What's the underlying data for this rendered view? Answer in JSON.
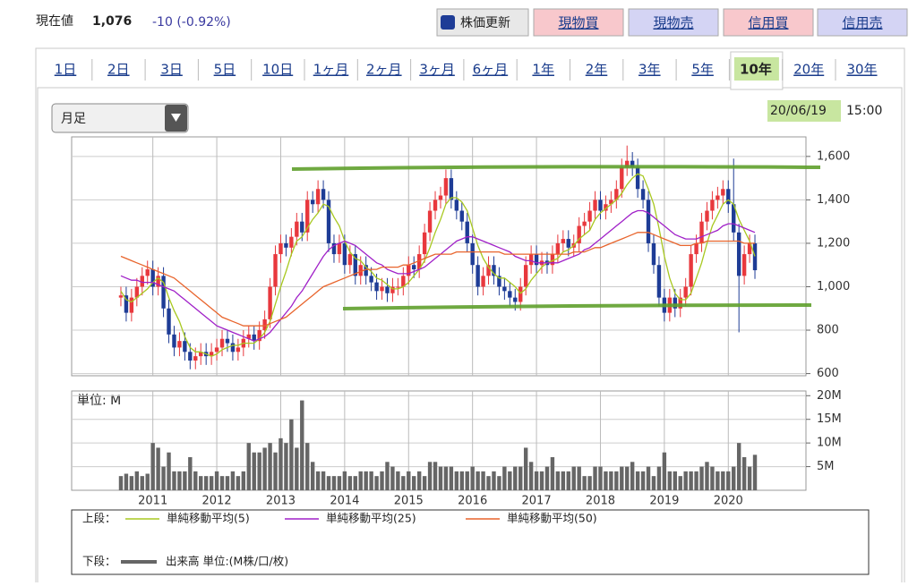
{
  "header": {
    "label": "現在値",
    "price": "1,076",
    "change": "-10 (-0.92%)"
  },
  "buttons": [
    "株価更新",
    "現物買",
    "現物売",
    "信用買",
    "信用売"
  ],
  "tabs": [
    "1日",
    "2日",
    "3日",
    "5日",
    "10日",
    "1ヶ月",
    "2ヶ月",
    "3ヶ月",
    "6ヶ月",
    "1年",
    "2年",
    "3年",
    "5年",
    "10年",
    "20年",
    "30年"
  ],
  "selected_tab": 13,
  "period_select": "月足",
  "timestamp": {
    "date": "20/06/19",
    "time": "15:00"
  },
  "legend": {
    "upper": "上段：",
    "lower": "下段："
  },
  "chart_data": [
    {
      "type": "candlestick",
      "up_color": "#e8383d",
      "down_color": "#1e3c96",
      "grid": true,
      "categories": [
        null,
        null,
        null,
        null,
        null,
        null,
        "2011",
        null,
        null,
        null,
        null,
        null,
        null,
        null,
        null,
        null,
        null,
        null,
        "2012",
        null,
        null,
        null,
        null,
        null,
        null,
        null,
        null,
        null,
        null,
        null,
        "2013",
        null,
        null,
        null,
        null,
        null,
        null,
        null,
        null,
        null,
        null,
        null,
        "2014",
        null,
        null,
        null,
        null,
        null,
        null,
        null,
        null,
        null,
        null,
        null,
        "2015",
        null,
        null,
        null,
        null,
        null,
        null,
        null,
        null,
        null,
        null,
        null,
        "2016",
        null,
        null,
        null,
        null,
        null,
        null,
        null,
        null,
        null,
        null,
        null,
        "2017",
        null,
        null,
        null,
        null,
        null,
        null,
        null,
        null,
        null,
        null,
        null,
        "2018",
        null,
        null,
        null,
        null,
        null,
        null,
        null,
        null,
        null,
        null,
        null,
        "2019",
        null,
        null,
        null,
        null,
        null,
        null,
        null,
        null,
        null,
        null,
        null,
        "2020",
        null,
        null,
        null,
        null,
        null
      ],
      "open": [
        950,
        960,
        880,
        950,
        1000,
        1050,
        1080,
        1000,
        1050,
        900,
        780,
        720,
        750,
        700,
        660,
        680,
        700,
        680,
        700,
        720,
        760,
        740,
        700,
        720,
        760,
        780,
        750,
        800,
        850,
        1000,
        1150,
        1200,
        1180,
        1230,
        1300,
        1250,
        1400,
        1380,
        1450,
        1400,
        1200,
        1150,
        1200,
        1100,
        1150,
        1050,
        1100,
        1050,
        1020,
        980,
        1000,
        970,
        1000,
        1000,
        1050,
        1100,
        1080,
        1150,
        1250,
        1350,
        1400,
        1420,
        1500,
        1400,
        1350,
        1300,
        1200,
        1100,
        1000,
        1050,
        1100,
        1050,
        1000,
        980,
        950,
        930,
        1000,
        1100,
        1150,
        1100,
        1120,
        1100,
        1150,
        1200,
        1220,
        1180,
        1200,
        1280,
        1300,
        1350,
        1400,
        1350,
        1380,
        1400,
        1450,
        1550,
        1580,
        1550,
        1450,
        1400,
        1200,
        1100,
        950,
        880,
        950,
        900,
        950,
        1000,
        1150,
        1200,
        1300,
        1350,
        1400,
        1420,
        1450,
        1380,
        1250,
        1050,
        1150,
        1200
      ],
      "high": [
        1000,
        1000,
        990,
        1040,
        1090,
        1120,
        1120,
        1090,
        1090,
        940,
        820,
        790,
        790,
        740,
        720,
        740,
        740,
        740,
        760,
        800,
        800,
        780,
        760,
        800,
        820,
        820,
        840,
        890,
        1040,
        1190,
        1240,
        1240,
        1270,
        1340,
        1340,
        1440,
        1440,
        1490,
        1490,
        1440,
        1240,
        1240,
        1240,
        1190,
        1190,
        1140,
        1140,
        1090,
        1060,
        1040,
        1040,
        1040,
        1040,
        1090,
        1140,
        1140,
        1190,
        1290,
        1390,
        1440,
        1460,
        1540,
        1540,
        1440,
        1390,
        1340,
        1240,
        1140,
        1090,
        1140,
        1140,
        1090,
        1040,
        1020,
        990,
        1040,
        1140,
        1190,
        1190,
        1160,
        1160,
        1190,
        1240,
        1260,
        1260,
        1240,
        1320,
        1340,
        1390,
        1440,
        1440,
        1420,
        1440,
        1490,
        1590,
        1650,
        1620,
        1590,
        1490,
        1440,
        1240,
        1140,
        990,
        990,
        990,
        990,
        1040,
        1190,
        1240,
        1340,
        1390,
        1440,
        1460,
        1490,
        1490,
        1590,
        1290,
        1190,
        1240,
        1240
      ],
      "low": [
        910,
        840,
        840,
        910,
        960,
        1010,
        960,
        960,
        860,
        740,
        680,
        680,
        660,
        620,
        620,
        640,
        640,
        640,
        660,
        680,
        700,
        660,
        660,
        680,
        720,
        710,
        710,
        760,
        810,
        960,
        1110,
        1140,
        1140,
        1190,
        1210,
        1210,
        1340,
        1340,
        1360,
        1160,
        1110,
        1110,
        1060,
        1060,
        1010,
        1010,
        1010,
        980,
        940,
        940,
        930,
        930,
        960,
        960,
        1010,
        1040,
        1040,
        1110,
        1210,
        1310,
        1360,
        1380,
        1360,
        1310,
        1260,
        1160,
        1060,
        960,
        960,
        1010,
        1010,
        960,
        940,
        910,
        890,
        890,
        960,
        1060,
        1060,
        1060,
        1060,
        1060,
        1110,
        1160,
        1140,
        1140,
        1160,
        1240,
        1260,
        1310,
        1310,
        1310,
        1340,
        1360,
        1410,
        1510,
        1510,
        1410,
        1360,
        1160,
        1060,
        910,
        840,
        840,
        860,
        860,
        910,
        960,
        1110,
        1160,
        1260,
        1310,
        1360,
        1380,
        1340,
        1210,
        790,
        1010,
        1110,
        1036
      ],
      "close": [
        960,
        880,
        950,
        1000,
        1050,
        1080,
        1000,
        1050,
        900,
        780,
        720,
        750,
        700,
        660,
        680,
        700,
        680,
        700,
        720,
        760,
        740,
        700,
        720,
        760,
        780,
        750,
        800,
        850,
        1000,
        1150,
        1200,
        1180,
        1230,
        1300,
        1250,
        1400,
        1380,
        1450,
        1400,
        1200,
        1150,
        1200,
        1100,
        1150,
        1050,
        1100,
        1050,
        1020,
        980,
        1000,
        970,
        1000,
        1000,
        1050,
        1100,
        1080,
        1150,
        1250,
        1350,
        1400,
        1420,
        1500,
        1400,
        1350,
        1300,
        1200,
        1100,
        1000,
        1050,
        1100,
        1050,
        1000,
        980,
        950,
        930,
        1000,
        1100,
        1150,
        1100,
        1120,
        1100,
        1150,
        1200,
        1220,
        1180,
        1200,
        1280,
        1300,
        1350,
        1400,
        1350,
        1380,
        1400,
        1450,
        1550,
        1580,
        1550,
        1450,
        1400,
        1200,
        1100,
        950,
        880,
        950,
        900,
        950,
        1000,
        1150,
        1200,
        1300,
        1350,
        1400,
        1420,
        1450,
        1380,
        1250,
        1050,
        1150,
        1200,
        1076
      ],
      "series": [
        {
          "name": "単純移動平均(5)",
          "color": "#a8c820",
          "values": [
            980,
            940,
            930,
            950,
            970,
            990,
            1020,
            1040,
            1020,
            950,
            890,
            840,
            770,
            720,
            700,
            700,
            690,
            680,
            690,
            710,
            720,
            730,
            730,
            740,
            740,
            740,
            760,
            790,
            840,
            920,
            1000,
            1070,
            1150,
            1210,
            1230,
            1270,
            1310,
            1340,
            1380,
            1370,
            1320,
            1280,
            1210,
            1160,
            1130,
            1120,
            1090,
            1070,
            1040,
            1030,
            1010,
            990,
            990,
            1000,
            1020,
            1050,
            1080,
            1120,
            1180,
            1250,
            1310,
            1380,
            1410,
            1410,
            1390,
            1350,
            1270,
            1190,
            1130,
            1090,
            1060,
            1040,
            1040,
            1020,
            1000,
            970,
            990,
            1030,
            1060,
            1090,
            1110,
            1120,
            1130,
            1160,
            1170,
            1190,
            1220,
            1240,
            1260,
            1310,
            1340,
            1360,
            1380,
            1400,
            1430,
            1470,
            1500,
            1520,
            1510,
            1450,
            1380,
            1270,
            1140,
            1040,
            970,
            940,
            940,
            970,
            1040,
            1110,
            1200,
            1280,
            1330,
            1380,
            1400,
            1380,
            1310,
            1260,
            1210,
            1140
          ]
        },
        {
          "name": "単純移動平均(25)",
          "color": "#a020c8",
          "values": [
            1050,
            1040,
            1030,
            1030,
            1020,
            1020,
            1020,
            1010,
            1000,
            990,
            980,
            960,
            940,
            920,
            900,
            880,
            860,
            840,
            820,
            810,
            800,
            790,
            780,
            770,
            760,
            750,
            760,
            770,
            790,
            820,
            850,
            880,
            910,
            950,
            980,
            1020,
            1060,
            1100,
            1140,
            1170,
            1190,
            1200,
            1210,
            1200,
            1190,
            1170,
            1150,
            1130,
            1110,
            1100,
            1080,
            1070,
            1060,
            1060,
            1060,
            1070,
            1080,
            1090,
            1110,
            1130,
            1150,
            1170,
            1190,
            1210,
            1220,
            1230,
            1230,
            1220,
            1210,
            1200,
            1190,
            1180,
            1170,
            1160,
            1140,
            1130,
            1120,
            1120,
            1110,
            1110,
            1110,
            1110,
            1110,
            1120,
            1130,
            1140,
            1150,
            1170,
            1180,
            1200,
            1220,
            1240,
            1260,
            1280,
            1300,
            1320,
            1340,
            1350,
            1350,
            1340,
            1320,
            1300,
            1280,
            1260,
            1240,
            1230,
            1220,
            1220,
            1220,
            1230,
            1240,
            1250,
            1260,
            1280,
            1290,
            1290,
            1280,
            1270,
            1260,
            1250
          ]
        },
        {
          "name": "単純移動平均(50)",
          "color": "#e8642c",
          "values": [
            1140,
            1130,
            1120,
            1110,
            1100,
            1090,
            1080,
            1070,
            1060,
            1050,
            1040,
            1020,
            1000,
            980,
            960,
            940,
            920,
            900,
            880,
            860,
            850,
            840,
            830,
            820,
            820,
            820,
            820,
            820,
            830,
            840,
            850,
            860,
            880,
            900,
            920,
            940,
            960,
            980,
            1000,
            1010,
            1020,
            1030,
            1040,
            1050,
            1060,
            1070,
            1080,
            1080,
            1080,
            1090,
            1090,
            1090,
            1090,
            1100,
            1100,
            1110,
            1120,
            1130,
            1140,
            1150,
            1150,
            1150,
            1150,
            1160,
            1160,
            1160,
            1160,
            1160,
            1160,
            1160,
            1160,
            1160,
            1150,
            1150,
            1150,
            1150,
            1150,
            1150,
            1150,
            1150,
            1150,
            1150,
            1150,
            1150,
            1150,
            1160,
            1160,
            1160,
            1170,
            1180,
            1180,
            1190,
            1200,
            1210,
            1220,
            1230,
            1240,
            1250,
            1250,
            1250,
            1240,
            1230,
            1220,
            1210,
            1200,
            1190,
            1190,
            1190,
            1200,
            1200,
            1210,
            1210,
            1210,
            1210,
            1210,
            1210,
            1210,
            1200,
            1200,
            1200
          ]
        }
      ],
      "ylim": [
        590,
        1690
      ],
      "yticks": [
        600,
        {
          "value": 800,
          "label": "800"
        },
        {
          "value": 1000,
          "label": "1,000"
        },
        {
          "value": 1200,
          "label": "1,200"
        },
        {
          "value": 1400,
          "label": "1,400"
        },
        {
          "value": 1600,
          "label": "1,600"
        }
      ]
    },
    {
      "type": "bar",
      "unit_label": "単位: M",
      "color": "#666666",
      "name": "出来高 単位:(M株/口/枚)",
      "values": [
        3,
        3.5,
        3,
        4,
        3,
        3.5,
        10,
        9,
        5,
        8,
        4,
        4,
        4,
        7,
        4,
        3,
        3,
        3,
        4,
        3,
        3,
        4,
        3,
        4,
        10,
        8,
        8,
        9,
        10,
        8,
        11,
        10,
        15,
        9,
        19,
        10,
        6,
        4,
        4,
        3,
        3,
        3,
        4,
        3,
        3,
        4,
        4,
        4,
        3,
        4,
        6,
        5,
        4,
        3,
        4,
        3,
        4,
        3,
        6,
        6,
        5,
        5,
        5,
        4,
        4,
        4,
        5,
        4,
        4,
        3,
        4,
        3,
        5,
        4,
        5,
        5,
        9,
        6,
        4,
        4,
        5,
        7,
        4,
        4,
        4,
        5,
        5,
        3,
        3,
        5,
        5,
        4,
        4,
        4,
        5,
        5,
        6,
        4,
        4,
        5,
        3,
        5,
        8,
        4,
        4,
        3,
        4,
        4,
        4,
        5,
        6,
        5,
        4,
        4,
        4,
        5,
        10,
        7,
        5,
        7.5
      ],
      "ylim": [
        0,
        21
      ],
      "yticks": [
        {
          "value": 5,
          "label": "5M"
        },
        {
          "value": 10,
          "label": "10M"
        },
        {
          "value": 15,
          "label": "15M"
        },
        {
          "value": 20,
          "label": "20M"
        }
      ]
    }
  ]
}
